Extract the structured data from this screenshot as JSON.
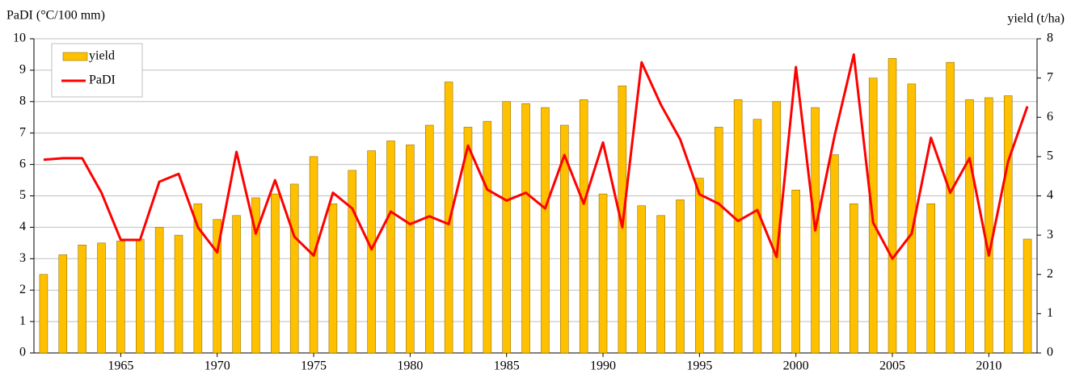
{
  "chart_data": {
    "type": "combo",
    "y_label": "PaDI (°C/100 mm)",
    "y2_label": "yield (t/ha)",
    "x": [
      1961,
      1962,
      1963,
      1964,
      1965,
      1966,
      1967,
      1968,
      1969,
      1970,
      1971,
      1972,
      1973,
      1974,
      1975,
      1976,
      1977,
      1978,
      1979,
      1980,
      1981,
      1982,
      1983,
      1984,
      1985,
      1986,
      1987,
      1988,
      1989,
      1990,
      1991,
      1992,
      1993,
      1994,
      1995,
      1996,
      1997,
      1998,
      1999,
      2000,
      2001,
      2002,
      2003,
      2004,
      2005,
      2006,
      2007,
      2008,
      2009,
      2010,
      2011,
      2012
    ],
    "xlim": [
      1960.5,
      2012.5
    ],
    "xticks": [
      1965,
      1970,
      1975,
      1980,
      1985,
      1990,
      1995,
      2000,
      2005,
      2010
    ],
    "ylim": [
      0,
      10
    ],
    "yticks": [
      0,
      1,
      2,
      3,
      4,
      5,
      6,
      7,
      8,
      9,
      10
    ],
    "y2lim": [
      0,
      8
    ],
    "y2ticks": [
      0,
      1,
      2,
      3,
      4,
      5,
      6,
      7,
      8
    ],
    "grid": true,
    "legend": "upper left",
    "series": [
      {
        "name": "yield",
        "type": "bar",
        "axis": "y2",
        "color": "#ffc000",
        "values": [
          2.0,
          2.5,
          2.75,
          2.8,
          2.85,
          2.9,
          3.2,
          3.0,
          3.8,
          3.4,
          3.5,
          3.95,
          4.05,
          4.3,
          5.0,
          3.8,
          4.65,
          5.15,
          5.4,
          5.3,
          5.8,
          6.9,
          5.75,
          5.9,
          6.4,
          6.35,
          6.25,
          5.8,
          6.45,
          4.05,
          6.8,
          3.75,
          3.5,
          3.9,
          4.45,
          5.75,
          6.45,
          5.95,
          6.4,
          4.15,
          6.25,
          5.05,
          3.8,
          7.0,
          7.5,
          6.85,
          3.8,
          7.4,
          6.45,
          6.5,
          6.55,
          2.9
        ]
      },
      {
        "name": "PaDI",
        "type": "line",
        "color": "#ff0000",
        "values": [
          6.15,
          6.2,
          6.2,
          5.1,
          3.6,
          3.6,
          5.45,
          5.7,
          4.0,
          3.2,
          6.4,
          3.8,
          5.5,
          3.7,
          3.1,
          5.1,
          4.6,
          3.3,
          4.5,
          4.1,
          4.35,
          4.1,
          6.6,
          5.2,
          4.85,
          5.1,
          4.6,
          6.3,
          4.75,
          6.7,
          4.0,
          9.25,
          7.9,
          6.8,
          5.05,
          4.75,
          4.2,
          4.55,
          3.05,
          9.1,
          3.9,
          6.9,
          9.5,
          4.15,
          3.0,
          3.8,
          6.85,
          5.1,
          6.2,
          3.1,
          6.1,
          7.85
        ]
      }
    ]
  }
}
